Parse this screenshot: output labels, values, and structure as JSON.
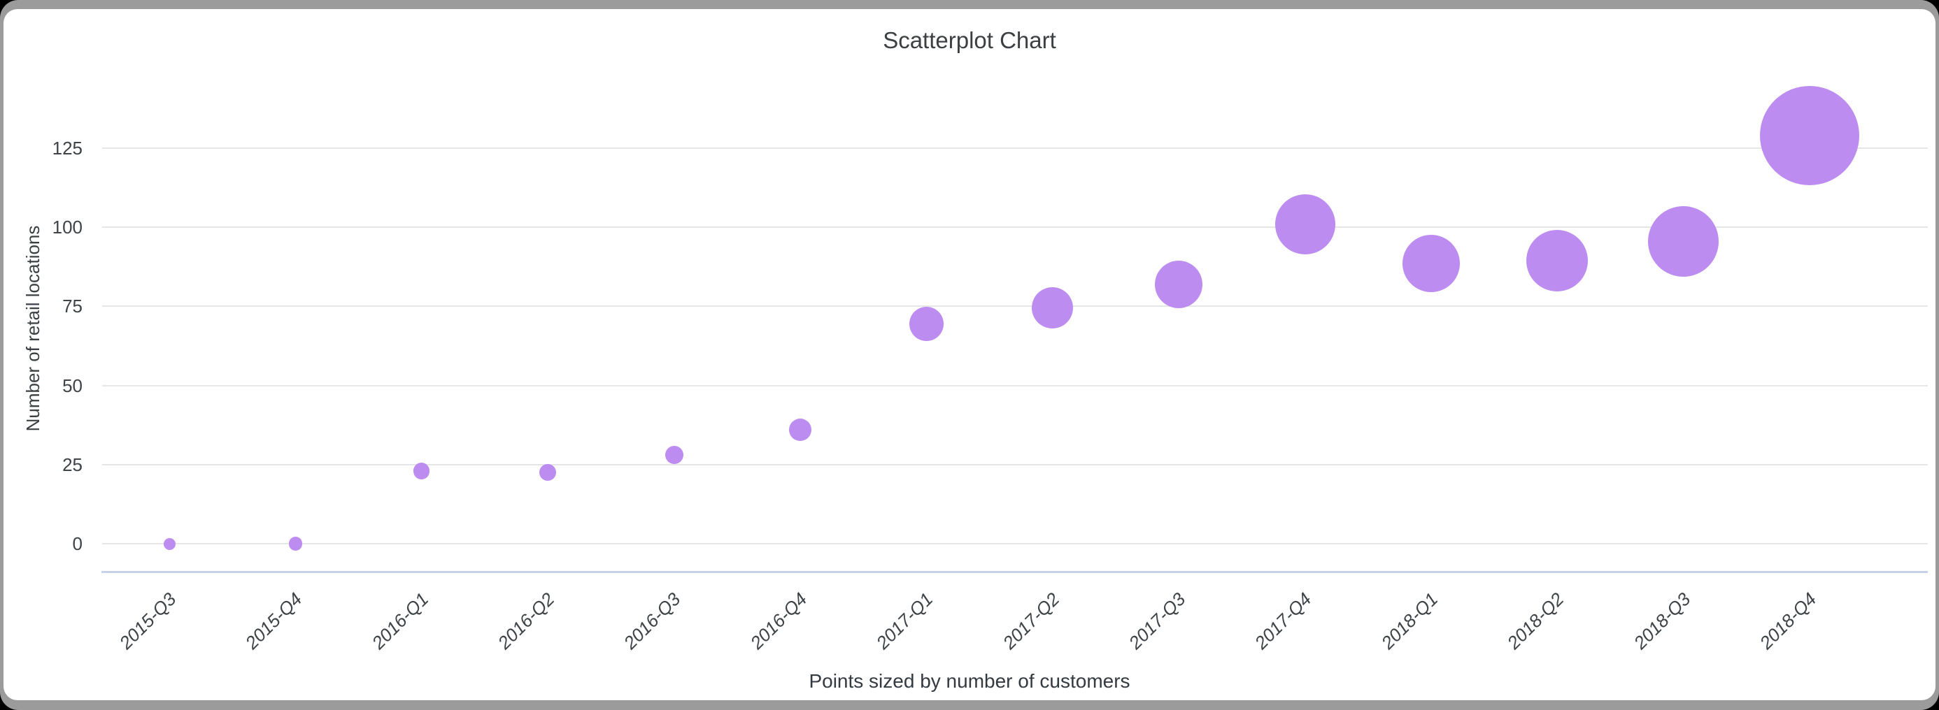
{
  "window": {
    "background": "#000000",
    "frame_color": "#9b9b9b",
    "card_color": "#ffffff"
  },
  "chart_data": {
    "type": "scatter",
    "title": "Scatterplot Chart",
    "ylabel": "Number of retail locations",
    "xlabel": "",
    "caption": "Points sized by number of customers",
    "legend_position": "none",
    "grid": true,
    "categories": [
      "2015-Q3",
      "2015-Q4",
      "2016-Q1",
      "2016-Q2",
      "2016-Q3",
      "2016-Q4",
      "2017-Q1",
      "2017-Q2",
      "2017-Q3",
      "2017-Q4",
      "2018-Q1",
      "2018-Q2",
      "2018-Q3",
      "2018-Q4"
    ],
    "values": [
      0,
      0,
      23,
      22.5,
      28,
      36,
      69.5,
      74.5,
      82,
      101,
      88.5,
      89.5,
      95.5,
      129
    ],
    "point_radius_px": [
      8.5,
      9.7,
      11.7,
      12,
      13,
      16.2,
      24.5,
      29.5,
      34,
      43,
      41,
      44,
      50.5,
      71
    ],
    "size_meaning": "number of customers",
    "yticks": [
      0,
      25,
      50,
      75,
      100,
      125
    ],
    "ylim": [
      -9,
      152
    ],
    "series_color": "#bd8cf0",
    "gridline_color": "#e6e6e6",
    "baseline_color": "#c7d1ec"
  }
}
